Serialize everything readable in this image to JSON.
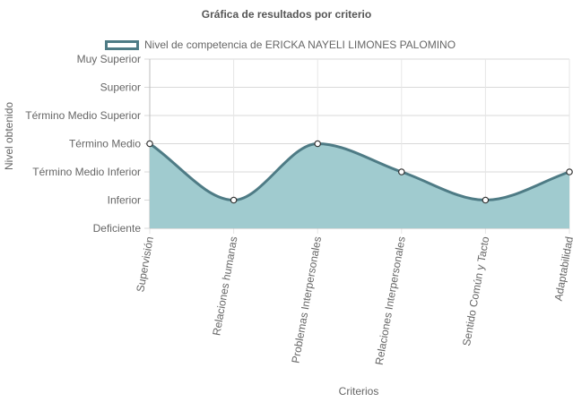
{
  "chart_data": {
    "type": "area",
    "title": "Gráfica de resultados por criterio",
    "xlabel": "Criterios",
    "ylabel": "Nivel obtenido",
    "categories": [
      "Supervisión",
      "Relaciones humanas",
      "Problemas Interpersonales",
      "Relaciones Interpersonales",
      "Sentido Común y Tacto",
      "Adaptabilidad"
    ],
    "y_levels": [
      "Deficiente",
      "Inferior",
      "Término Medio Inferior",
      "Término Medio",
      "Término Medio Superior",
      "Superior",
      "Muy Superior"
    ],
    "ylim": [
      0,
      6
    ],
    "series": [
      {
        "name": "Nivel de competencia de ERICKA NAYELI LIMONES PALOMINO",
        "values": [
          3,
          1,
          3,
          2,
          1,
          2
        ],
        "fill_color": "#a0cbcf",
        "line_color": "#4e7b85"
      }
    ],
    "grid": true,
    "legend_position": "top"
  }
}
